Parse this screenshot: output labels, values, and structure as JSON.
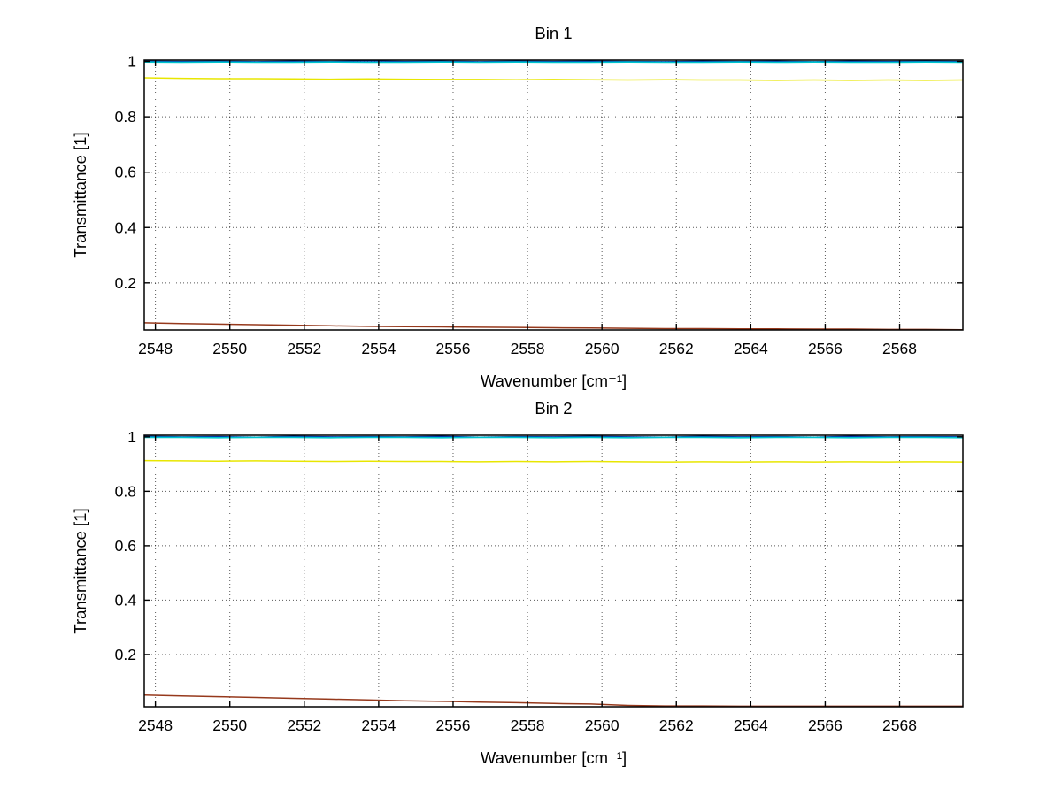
{
  "figure": {
    "background": "#ffffff",
    "grid_color": "#000000",
    "axis_color": "#000000"
  },
  "chart_data": [
    {
      "type": "line",
      "title": "Bin 1",
      "xlabel": "Wavenumber [cm⁻¹]",
      "ylabel": "Transmittance [1]",
      "xlim": [
        2547.7,
        2569.7
      ],
      "ylim": [
        0.03,
        1.005
      ],
      "xticks": [
        2548,
        2550,
        2552,
        2554,
        2556,
        2558,
        2560,
        2562,
        2564,
        2566,
        2568
      ],
      "yticks": [
        0.2,
        0.4,
        0.6,
        0.8,
        1
      ],
      "grid": true,
      "grid_style": "dotted",
      "legend": "none",
      "x": [
        2547.7,
        2548.7,
        2549.7,
        2550.7,
        2551.7,
        2552.7,
        2553.7,
        2554.7,
        2555.7,
        2556.7,
        2557.7,
        2558.7,
        2559.7,
        2560.7,
        2561.7,
        2562.7,
        2563.7,
        2564.7,
        2565.7,
        2566.7,
        2567.7,
        2568.7,
        2569.7
      ],
      "series": [
        {
          "name": "transmittance-blue",
          "color": "#0033aa",
          "width": 1.4,
          "values": [
            1.001,
            1.0,
            1.001,
            0.999,
            1.001,
            1.0,
            1.002,
            1.0,
            1.001,
            0.999,
            1.001,
            1.0,
            1.001,
            1.0,
            0.999,
            1.001,
            1.0,
            1.001,
            0.999,
            1.001,
            1.0,
            1.001,
            1.0
          ]
        },
        {
          "name": "transmittance-cyan",
          "color": "#00c5cd",
          "width": 1.6,
          "values": [
            0.998,
            0.997,
            0.998,
            0.997,
            0.997,
            0.998,
            0.997,
            0.997,
            0.998,
            0.997,
            0.998,
            0.997,
            0.997,
            0.998,
            0.997,
            0.997,
            0.998,
            0.997,
            0.998,
            0.997,
            0.997,
            0.998,
            0.997
          ]
        },
        {
          "name": "transmittance-yellow",
          "color": "#e8e600",
          "width": 1.5,
          "values": [
            0.941,
            0.939,
            0.938,
            0.938,
            0.937,
            0.936,
            0.937,
            0.936,
            0.935,
            0.935,
            0.934,
            0.935,
            0.934,
            0.933,
            0.934,
            0.933,
            0.933,
            0.932,
            0.933,
            0.932,
            0.933,
            0.932,
            0.933
          ]
        },
        {
          "name": "transmittance-darkred",
          "color": "#96391c",
          "width": 1.5,
          "values": [
            0.056,
            0.053,
            0.051,
            0.049,
            0.047,
            0.045,
            0.043,
            0.042,
            0.041,
            0.04,
            0.039,
            0.038,
            0.037,
            0.036,
            0.035,
            0.035,
            0.034,
            0.034,
            0.033,
            0.033,
            0.032,
            0.032,
            0.031
          ]
        }
      ]
    },
    {
      "type": "line",
      "title": "Bin 2",
      "xlabel": "Wavenumber [cm⁻¹]",
      "ylabel": "Transmittance [1]",
      "xlim": [
        2547.7,
        2569.7
      ],
      "ylim": [
        0.008,
        1.006
      ],
      "xticks": [
        2548,
        2550,
        2552,
        2554,
        2556,
        2558,
        2560,
        2562,
        2564,
        2566,
        2568
      ],
      "yticks": [
        0.2,
        0.4,
        0.6,
        0.8,
        1
      ],
      "grid": true,
      "grid_style": "dotted",
      "legend": "none",
      "x": [
        2547.7,
        2548.7,
        2549.7,
        2550.7,
        2551.7,
        2552.7,
        2553.7,
        2554.7,
        2555.7,
        2556.7,
        2557.7,
        2558.7,
        2559.7,
        2560.7,
        2561.7,
        2562.7,
        2563.7,
        2564.7,
        2565.7,
        2566.7,
        2567.7,
        2568.7,
        2569.7
      ],
      "series": [
        {
          "name": "transmittance-blue",
          "color": "#0033aa",
          "width": 1.4,
          "values": [
            1.002,
            1.0,
            1.001,
            0.999,
            1.002,
            1.0,
            1.001,
            1.0,
            1.002,
            0.999,
            1.001,
            1.0,
            1.002,
            1.0,
            0.999,
            1.002,
            1.0,
            1.001,
            0.999,
            1.002,
            1.0,
            1.001,
            1.0
          ]
        },
        {
          "name": "transmittance-cyan",
          "color": "#00c5cd",
          "width": 1.6,
          "values": [
            0.998,
            0.998,
            0.997,
            0.998,
            0.998,
            0.997,
            0.998,
            0.998,
            0.997,
            0.998,
            0.998,
            0.997,
            0.998,
            0.997,
            0.998,
            0.998,
            0.997,
            0.998,
            0.998,
            0.997,
            0.998,
            0.998,
            0.997
          ]
        },
        {
          "name": "transmittance-yellow",
          "color": "#e8e600",
          "width": 1.5,
          "values": [
            0.913,
            0.912,
            0.911,
            0.912,
            0.911,
            0.91,
            0.911,
            0.91,
            0.91,
            0.909,
            0.91,
            0.909,
            0.91,
            0.909,
            0.908,
            0.909,
            0.908,
            0.909,
            0.908,
            0.909,
            0.908,
            0.909,
            0.908
          ]
        },
        {
          "name": "transmittance-darkred",
          "color": "#96391c",
          "width": 1.5,
          "values": [
            0.051,
            0.048,
            0.045,
            0.042,
            0.039,
            0.036,
            0.033,
            0.03,
            0.028,
            0.025,
            0.023,
            0.02,
            0.018,
            0.013,
            0.011,
            0.011,
            0.01,
            0.01,
            0.01,
            0.01,
            0.01,
            0.01,
            0.01
          ]
        }
      ]
    }
  ]
}
